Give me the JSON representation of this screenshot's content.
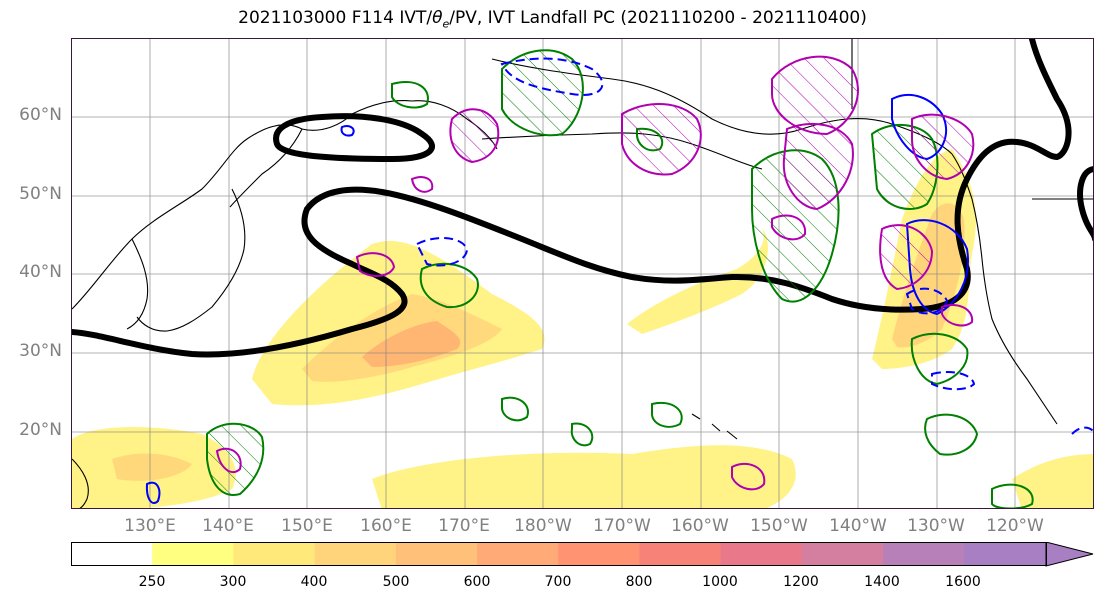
{
  "title": "2021103000 F114 IVT/θe/PV, IVT Landfall PC (2021110200 - 2021110400)",
  "title_parts": {
    "pre": "2021103000 F114 IVT/",
    "theta": "θ",
    "sub": "e",
    "post": "/PV, IVT Landfall PC (2021110200 - 2021110400)"
  },
  "lat_labels": [
    "60°N",
    "50°N",
    "40°N",
    "30°N",
    "20°N"
  ],
  "lon_labels": [
    "130°E",
    "140°E",
    "150°E",
    "160°E",
    "170°E",
    "180°W",
    "170°W",
    "160°W",
    "150°W",
    "140°W",
    "130°W",
    "120°W"
  ],
  "colorbar": {
    "ticks": [
      "250",
      "300",
      "400",
      "500",
      "600",
      "700",
      "800",
      "1000",
      "1200",
      "1400",
      "1600"
    ],
    "colors": [
      "#ffffff",
      "#ffff80",
      "#ffe97a",
      "#ffd47a",
      "#ffc07a",
      "#ffaa77",
      "#ff9372",
      "#f78378",
      "#e8788a",
      "#d47ea0",
      "#b880b8",
      "#a97fc4"
    ]
  },
  "contour_colors": {
    "ivt_fill_light": "#fff27a",
    "ivt_fill_mid": "#ffcc77",
    "ivt_fill_high": "#ffaa70",
    "pv_positive": "#008000",
    "pv_negative": "#0000ff",
    "pc_positive": "#b000b0",
    "pc_negative": "#0000ff",
    "theta_e_line": "#000000"
  }
}
